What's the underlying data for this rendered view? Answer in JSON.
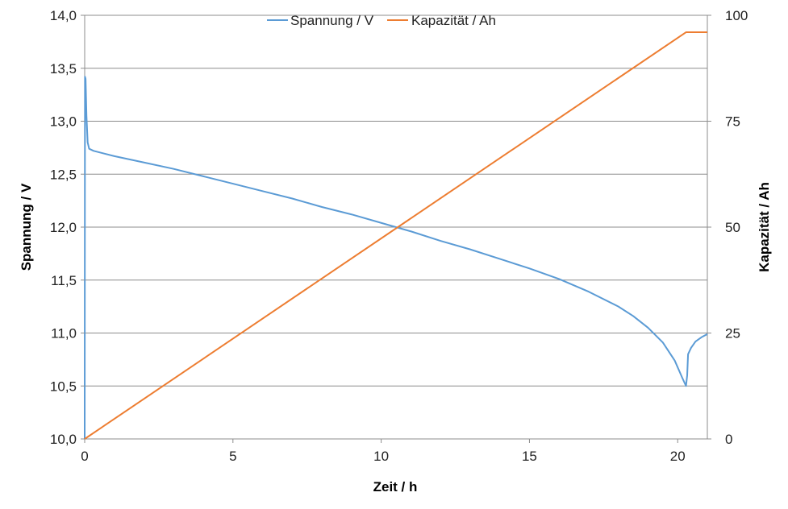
{
  "chart_data": {
    "type": "line",
    "xlabel": "Zeit / h",
    "ylabel": "Spannung  / V",
    "y2label": "Kapazität  / Ah",
    "xlim": [
      0,
      21
    ],
    "ylim": [
      10.0,
      14.0
    ],
    "y2lim": [
      0,
      100
    ],
    "x_ticks": [
      0,
      5,
      10,
      15,
      20
    ],
    "y_ticks": [
      "10,0",
      "10,5",
      "11,0",
      "11,5",
      "12,0",
      "12,5",
      "13,0",
      "13,5",
      "14,0"
    ],
    "y_tick_values": [
      10.0,
      10.5,
      11.0,
      11.5,
      12.0,
      12.5,
      13.0,
      13.5,
      14.0
    ],
    "y2_ticks": [
      0,
      25,
      50,
      75,
      100
    ],
    "grid": "horizontal",
    "legend": "top",
    "series": [
      {
        "name": "Spannung / V",
        "axis": "left",
        "color": "#5b9bd5",
        "points": [
          [
            0.0,
            10.0
          ],
          [
            0.01,
            13.42
          ],
          [
            0.03,
            13.4
          ],
          [
            0.06,
            13.05
          ],
          [
            0.1,
            12.8
          ],
          [
            0.15,
            12.74
          ],
          [
            0.3,
            12.72
          ],
          [
            1,
            12.67
          ],
          [
            2,
            12.61
          ],
          [
            3,
            12.55
          ],
          [
            4,
            12.48
          ],
          [
            5,
            12.41
          ],
          [
            6,
            12.34
          ],
          [
            7,
            12.27
          ],
          [
            8,
            12.19
          ],
          [
            9,
            12.12
          ],
          [
            10,
            12.04
          ],
          [
            11,
            11.96
          ],
          [
            12,
            11.87
          ],
          [
            13,
            11.79
          ],
          [
            14,
            11.7
          ],
          [
            15,
            11.61
          ],
          [
            16,
            11.51
          ],
          [
            17,
            11.39
          ],
          [
            18,
            11.25
          ],
          [
            18.5,
            11.16
          ],
          [
            19,
            11.05
          ],
          [
            19.5,
            10.91
          ],
          [
            19.9,
            10.74
          ],
          [
            20.15,
            10.58
          ],
          [
            20.28,
            10.5
          ],
          [
            20.32,
            10.6
          ],
          [
            20.35,
            10.8
          ],
          [
            20.45,
            10.86
          ],
          [
            20.6,
            10.92
          ],
          [
            20.8,
            10.96
          ],
          [
            21.0,
            10.99
          ]
        ]
      },
      {
        "name": "Kapazität / Ah",
        "axis": "right",
        "color": "#ed7d31",
        "points": [
          [
            0.0,
            0.0
          ],
          [
            20.28,
            96.0
          ],
          [
            21.0,
            96.0
          ]
        ]
      }
    ]
  }
}
